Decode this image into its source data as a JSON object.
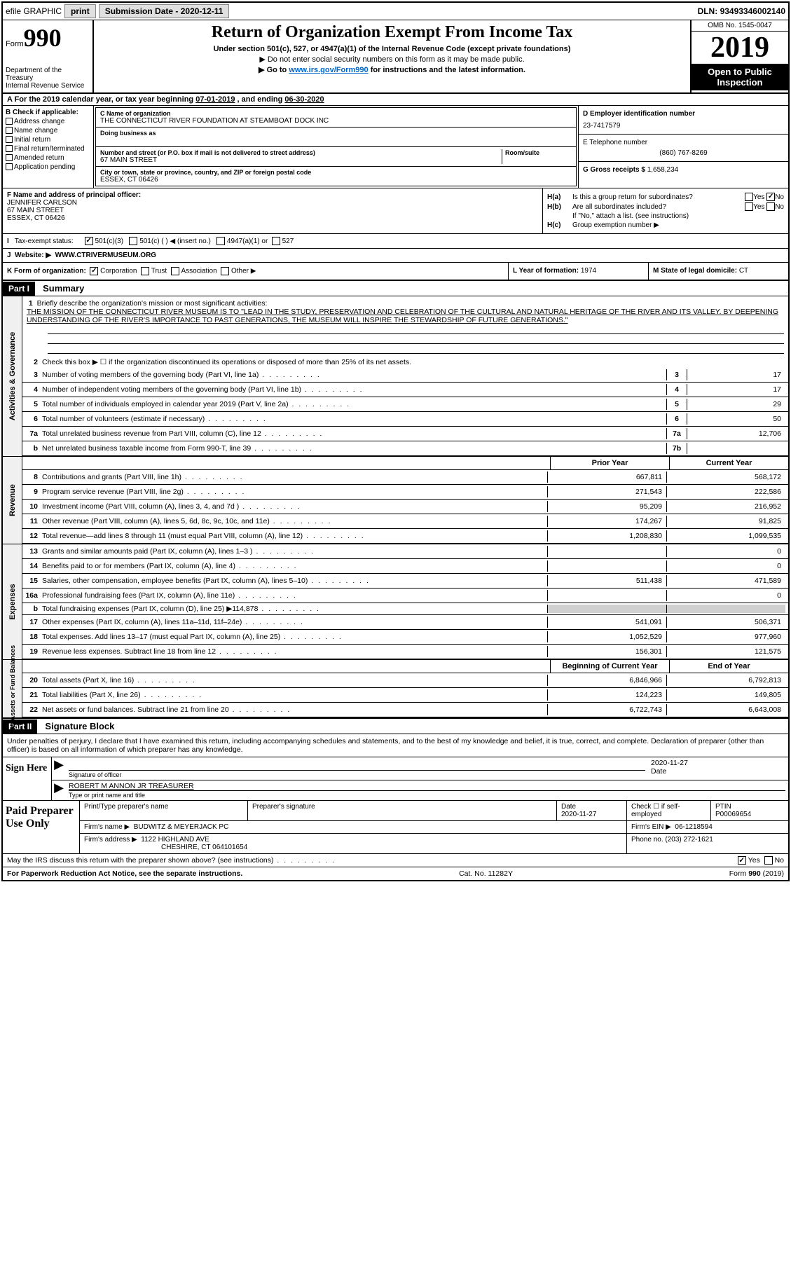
{
  "header": {
    "efile": "efile GRAPHIC",
    "print": "print",
    "sub_date_lbl": "Submission Date - ",
    "sub_date": "2020-12-11",
    "dln_lbl": "DLN: ",
    "dln": "93493346002140"
  },
  "top": {
    "form_lbl": "Form",
    "form_no": "990",
    "dept": "Department of the Treasury",
    "irs": "Internal Revenue Service",
    "title": "Return of Organization Exempt From Income Tax",
    "sub1": "Under section 501(c), 527, or 4947(a)(1) of the Internal Revenue Code (except private foundations)",
    "sub2": "▶ Do not enter social security numbers on this form as it may be made public.",
    "sub3_pre": "▶ Go to ",
    "sub3_link": "www.irs.gov/Form990",
    "sub3_post": " for instructions and the latest information.",
    "omb": "OMB No. 1545-0047",
    "year": "2019",
    "inspect1": "Open to Public",
    "inspect2": "Inspection"
  },
  "period": {
    "text_pre": "A For the 2019 calendar year, or tax year beginning ",
    "begin": "07-01-2019",
    "mid": " , and ending ",
    "end": "06-30-2020"
  },
  "b": {
    "hdr": "B Check if applicable:",
    "items": [
      "Address change",
      "Name change",
      "Initial return",
      "Final return/terminated",
      "Amended return",
      "Application pending"
    ]
  },
  "c": {
    "name_lbl": "C Name of organization",
    "name": "THE CONNECTICUT RIVER FOUNDATION AT STEAMBOAT DOCK INC",
    "dba_lbl": "Doing business as",
    "street_lbl": "Number and street (or P.O. box if mail is not delivered to street address)",
    "room_lbl": "Room/suite",
    "street": "67 MAIN STREET",
    "city_lbl": "City or town, state or province, country, and ZIP or foreign postal code",
    "city": "ESSEX, CT  06426"
  },
  "d": {
    "lbl": "D Employer identification number",
    "val": "23-7417579"
  },
  "e": {
    "lbl": "E Telephone number",
    "val": "(860) 767-8269"
  },
  "g": {
    "lbl": "G Gross receipts $ ",
    "val": "1,658,234"
  },
  "f": {
    "lbl": "F Name and address of principal officer:",
    "name": "JENNIFER CARLSON",
    "street": "67 MAIN STREET",
    "city": "ESSEX, CT  06426"
  },
  "h": {
    "a_lbl": "Is this a group return for subordinates?",
    "b_lbl": "Are all subordinates included?",
    "b_note": "If \"No,\" attach a list. (see instructions)",
    "c_lbl": "Group exemption number ▶",
    "ha": "H(a)",
    "hb": "H(b)",
    "hc": "H(c)",
    "yes": "Yes",
    "no": "No"
  },
  "i": {
    "lbl": "Tax-exempt status:",
    "opts": [
      "501(c)(3)",
      "501(c) (  ) ◀ (insert no.)",
      "4947(a)(1) or",
      "527"
    ]
  },
  "j": {
    "lbl": "Website: ▶",
    "val": "WWW.CTRIVERMUSEUM.ORG"
  },
  "k": {
    "lbl": "K Form of organization:",
    "opts": [
      "Corporation",
      "Trust",
      "Association",
      "Other ▶"
    ]
  },
  "l": {
    "lbl": "L Year of formation: ",
    "val": "1974"
  },
  "m": {
    "lbl": "M State of legal domicile: ",
    "val": "CT"
  },
  "part1": {
    "hdr": "Part I",
    "title": "Summary",
    "mission_lbl": "Briefly describe the organization's mission or most significant activities:",
    "mission": "THE MISSION OF THE CONNECTICUT RIVER MUSEUM IS TO \"LEAD IN THE STUDY, PRESERVATION AND CELEBRATION OF THE CULTURAL AND NATURAL HERITAGE OF THE RIVER AND ITS VALLEY. BY DEEPENING UNDERSTANDING OF THE RIVER'S IMPORTANCE TO PAST GENERATIONS, THE MUSEUM WILL INSPIRE THE STEWARDSHIP OF FUTURE GENERATIONS.\"",
    "line2": "Check this box ▶ ☐  if the organization discontinued its operations or disposed of more than 25% of its net assets.",
    "gov_lines": [
      {
        "n": "3",
        "t": "Number of voting members of the governing body (Part VI, line 1a)",
        "box": "3",
        "v": "17"
      },
      {
        "n": "4",
        "t": "Number of independent voting members of the governing body (Part VI, line 1b)",
        "box": "4",
        "v": "17"
      },
      {
        "n": "5",
        "t": "Total number of individuals employed in calendar year 2019 (Part V, line 2a)",
        "box": "5",
        "v": "29"
      },
      {
        "n": "6",
        "t": "Total number of volunteers (estimate if necessary)",
        "box": "6",
        "v": "50"
      },
      {
        "n": "7a",
        "t": "Total unrelated business revenue from Part VIII, column (C), line 12",
        "box": "7a",
        "v": "12,706"
      },
      {
        "n": "b",
        "t": "Net unrelated business taxable income from Form 990-T, line 39",
        "box": "7b",
        "v": ""
      }
    ],
    "col_hdr": {
      "prior": "Prior Year",
      "current": "Current Year"
    },
    "revenue": [
      {
        "n": "8",
        "t": "Contributions and grants (Part VIII, line 1h)",
        "p": "667,811",
        "c": "568,172"
      },
      {
        "n": "9",
        "t": "Program service revenue (Part VIII, line 2g)",
        "p": "271,543",
        "c": "222,586"
      },
      {
        "n": "10",
        "t": "Investment income (Part VIII, column (A), lines 3, 4, and 7d )",
        "p": "95,209",
        "c": "216,952"
      },
      {
        "n": "11",
        "t": "Other revenue (Part VIII, column (A), lines 5, 6d, 8c, 9c, 10c, and 11e)",
        "p": "174,267",
        "c": "91,825"
      },
      {
        "n": "12",
        "t": "Total revenue—add lines 8 through 11 (must equal Part VIII, column (A), line 12)",
        "p": "1,208,830",
        "c": "1,099,535"
      }
    ],
    "expenses": [
      {
        "n": "13",
        "t": "Grants and similar amounts paid (Part IX, column (A), lines 1–3 )",
        "p": "",
        "c": "0"
      },
      {
        "n": "14",
        "t": "Benefits paid to or for members (Part IX, column (A), line 4)",
        "p": "",
        "c": "0"
      },
      {
        "n": "15",
        "t": "Salaries, other compensation, employee benefits (Part IX, column (A), lines 5–10)",
        "p": "511,438",
        "c": "471,589"
      },
      {
        "n": "16a",
        "t": "Professional fundraising fees (Part IX, column (A), line 11e)",
        "p": "",
        "c": "0"
      },
      {
        "n": "b",
        "t": "Total fundraising expenses (Part IX, column (D), line 25) ▶114,878",
        "p": "shade",
        "c": "shade"
      },
      {
        "n": "17",
        "t": "Other expenses (Part IX, column (A), lines 11a–11d, 11f–24e)",
        "p": "541,091",
        "c": "506,371"
      },
      {
        "n": "18",
        "t": "Total expenses. Add lines 13–17 (must equal Part IX, column (A), line 25)",
        "p": "1,052,529",
        "c": "977,960"
      },
      {
        "n": "19",
        "t": "Revenue less expenses. Subtract line 18 from line 12",
        "p": "156,301",
        "c": "121,575"
      }
    ],
    "balance_hdr": {
      "begin": "Beginning of Current Year",
      "end": "End of Year"
    },
    "balances": [
      {
        "n": "20",
        "t": "Total assets (Part X, line 16)",
        "p": "6,846,966",
        "c": "6,792,813"
      },
      {
        "n": "21",
        "t": "Total liabilities (Part X, line 26)",
        "p": "124,223",
        "c": "149,805"
      },
      {
        "n": "22",
        "t": "Net assets or fund balances. Subtract line 21 from line 20",
        "p": "6,722,743",
        "c": "6,643,008"
      }
    ],
    "vert": {
      "gov": "Activities & Governance",
      "rev": "Revenue",
      "exp": "Expenses",
      "bal": "Net Assets or Fund Balances"
    }
  },
  "part2": {
    "hdr": "Part II",
    "title": "Signature Block",
    "decl": "Under penalties of perjury, I declare that I have examined this return, including accompanying schedules and statements, and to the best of my knowledge and belief, it is true, correct, and complete. Declaration of preparer (other than officer) is based on all information of which preparer has any knowledge.",
    "sign_here": "Sign Here",
    "sig_officer": "Signature of officer",
    "sig_date": "2020-11-27",
    "date_lbl": "Date",
    "officer_name": "ROBERT M ANNON JR TREASURER",
    "name_title_lbl": "Type or print name and title",
    "paid": "Paid Preparer Use Only",
    "prep_name_lbl": "Print/Type preparer's name",
    "prep_sig_lbl": "Preparer's signature",
    "prep_date_lbl": "Date",
    "prep_date": "2020-11-27",
    "self_emp": "Check ☐ if self-employed",
    "ptin_lbl": "PTIN",
    "ptin": "P00069654",
    "firm_name_lbl": "Firm's name   ▶",
    "firm_name": "BUDWITZ & MEYERJACK PC",
    "firm_ein_lbl": "Firm's EIN ▶",
    "firm_ein": "06-1218594",
    "firm_addr_lbl": "Firm's address ▶",
    "firm_addr1": "1122 HIGHLAND AVE",
    "firm_addr2": "CHESHIRE, CT  064101654",
    "phone_lbl": "Phone no. ",
    "phone": "(203) 272-1621"
  },
  "footer": {
    "q": "May the IRS discuss this return with the preparer shown above? (see instructions)",
    "yes": "Yes",
    "no": "No",
    "pra": "For Paperwork Reduction Act Notice, see the separate instructions.",
    "cat": "Cat. No. 11282Y",
    "form": "Form 990 (2019)"
  }
}
